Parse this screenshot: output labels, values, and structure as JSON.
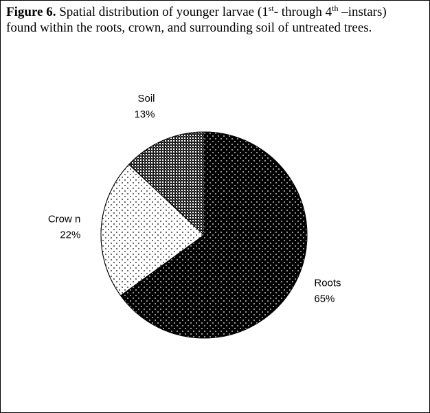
{
  "chart_data": {
    "type": "pie",
    "caption": {
      "label": "Figure 6.",
      "text": [
        " Spatial distribution of younger larvae (1",
        "st",
        "- through 4",
        "th",
        " –instars) found within the roots, crown, and surrounding soil of untreated trees."
      ]
    },
    "categories": [
      "Roots",
      "Crow n",
      "Soil"
    ],
    "values": [
      65,
      22,
      13
    ],
    "value_labels": [
      "65%",
      "22%",
      "13%"
    ],
    "colors": [
      "#000000",
      "#ffffff",
      "#1a1a1a"
    ]
  }
}
